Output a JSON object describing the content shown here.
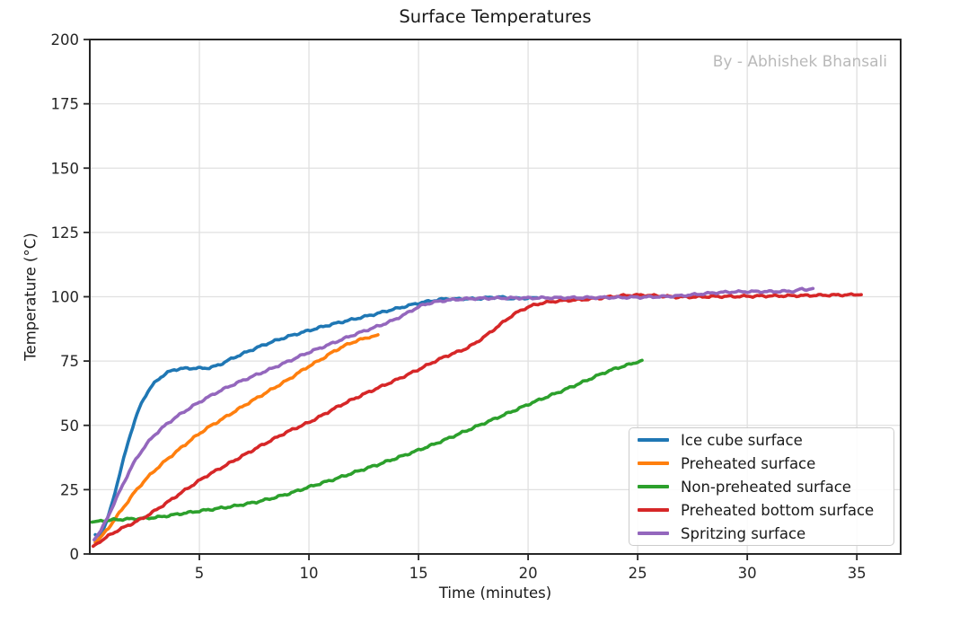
{
  "chart_data": {
    "type": "line",
    "title": "Surface Temperatures",
    "watermark": "By - Abhishek Bhansali",
    "xlabel": "Time (minutes)",
    "ylabel": "Temperature (°C)",
    "xlim": [
      0,
      37
    ],
    "ylim": [
      0,
      200
    ],
    "xticks": [
      5,
      10,
      15,
      20,
      25,
      30,
      35
    ],
    "yticks": [
      0,
      25,
      50,
      75,
      100,
      125,
      150,
      175,
      200
    ],
    "grid": true,
    "grid_color": "#e0e0e0",
    "spine_color": "#262626",
    "text_color": "#262626",
    "legend_position": "lower right",
    "series": [
      {
        "name": "Ice cube surface",
        "color": "#1f77b4",
        "points": [
          [
            0.25,
            7.5
          ],
          [
            0.4,
            6.8
          ],
          [
            0.55,
            8.5
          ],
          [
            0.7,
            11
          ],
          [
            0.9,
            16
          ],
          [
            1.1,
            22.5
          ],
          [
            1.3,
            29
          ],
          [
            1.5,
            35.5
          ],
          [
            1.7,
            42
          ],
          [
            1.9,
            48
          ],
          [
            2.1,
            53
          ],
          [
            2.3,
            57.5
          ],
          [
            2.5,
            61
          ],
          [
            2.7,
            63.8
          ],
          [
            2.9,
            66
          ],
          [
            3.2,
            68.5
          ],
          [
            3.5,
            70.3
          ],
          [
            3.8,
            71.5
          ],
          [
            4.1,
            72
          ],
          [
            4.6,
            72.2
          ],
          [
            5.1,
            72.2
          ],
          [
            5.5,
            72.4
          ],
          [
            5.9,
            73.5
          ],
          [
            6.3,
            75.2
          ],
          [
            6.7,
            76.8
          ],
          [
            7.1,
            78.3
          ],
          [
            7.6,
            80.1
          ],
          [
            8.1,
            81.8
          ],
          [
            8.6,
            83.3
          ],
          [
            9.1,
            84.7
          ],
          [
            9.6,
            85.9
          ],
          [
            10.1,
            87.1
          ],
          [
            10.6,
            88.3
          ],
          [
            11.1,
            89.4
          ],
          [
            11.6,
            90.4
          ],
          [
            12.1,
            91.4
          ],
          [
            12.6,
            92.4
          ],
          [
            13.1,
            93.4
          ],
          [
            13.6,
            94.6
          ],
          [
            14.1,
            95.6
          ],
          [
            14.6,
            96.7
          ],
          [
            15.1,
            97.7
          ],
          [
            15.6,
            98.4
          ],
          [
            16,
            98.9
          ],
          [
            16.3,
            99.3
          ],
          [
            16.7,
            99
          ],
          [
            17.1,
            99.3
          ],
          [
            17.5,
            99.1
          ],
          [
            17.9,
            99.4
          ],
          [
            18.3,
            99.7
          ],
          [
            18.7,
            99.9
          ],
          [
            19.1,
            99.4
          ],
          [
            19.5,
            99.3
          ],
          [
            19.9,
            99.5
          ],
          [
            20.4,
            99.6
          ]
        ]
      },
      {
        "name": "Preheated surface",
        "color": "#ff7f0e",
        "points": [
          [
            0.25,
            4.5
          ],
          [
            0.5,
            6.5
          ],
          [
            0.8,
            9.5
          ],
          [
            1.1,
            13
          ],
          [
            1.4,
            16.5
          ],
          [
            1.7,
            20
          ],
          [
            2,
            23.5
          ],
          [
            2.3,
            26.6
          ],
          [
            2.6,
            29.4
          ],
          [
            2.9,
            32
          ],
          [
            3.2,
            34.3
          ],
          [
            3.5,
            36.6
          ],
          [
            3.9,
            39.4
          ],
          [
            4.3,
            42.2
          ],
          [
            4.7,
            44.9
          ],
          [
            5.1,
            47.4
          ],
          [
            5.5,
            49.7
          ],
          [
            5.9,
            51.7
          ],
          [
            6.3,
            53.8
          ],
          [
            6.7,
            55.9
          ],
          [
            7.1,
            58
          ],
          [
            7.5,
            60
          ],
          [
            7.9,
            62
          ],
          [
            8.3,
            64
          ],
          [
            8.7,
            66
          ],
          [
            9.1,
            68
          ],
          [
            9.5,
            70.3
          ],
          [
            9.9,
            72.5
          ],
          [
            10.3,
            74.4
          ],
          [
            10.7,
            76.4
          ],
          [
            11.1,
            78.6
          ],
          [
            11.5,
            80.4
          ],
          [
            11.9,
            82
          ],
          [
            12.3,
            83.2
          ],
          [
            12.7,
            84.2
          ],
          [
            13,
            84.7
          ],
          [
            13.15,
            85.2
          ]
        ]
      },
      {
        "name": "Non-preheated surface",
        "color": "#2ca02c",
        "points": [
          [
            0.1,
            12.4
          ],
          [
            0.6,
            12.9
          ],
          [
            1.1,
            13.3
          ],
          [
            1.6,
            13.5
          ],
          [
            2.1,
            13.7
          ],
          [
            2.6,
            13.9
          ],
          [
            3.1,
            14.3
          ],
          [
            3.6,
            14.9
          ],
          [
            4.1,
            15.6
          ],
          [
            4.6,
            16.2
          ],
          [
            5.1,
            16.8
          ],
          [
            5.6,
            17.4
          ],
          [
            6.1,
            18
          ],
          [
            6.6,
            18.6
          ],
          [
            7.1,
            19.4
          ],
          [
            7.6,
            20.2
          ],
          [
            8.1,
            21.2
          ],
          [
            8.6,
            22.3
          ],
          [
            9.1,
            23.5
          ],
          [
            9.6,
            24.9
          ],
          [
            10.1,
            26.3
          ],
          [
            10.6,
            27.6
          ],
          [
            11.1,
            28.9
          ],
          [
            11.6,
            30.3
          ],
          [
            12.1,
            31.8
          ],
          [
            12.6,
            33.2
          ],
          [
            13.1,
            34.6
          ],
          [
            13.6,
            36.1
          ],
          [
            14.1,
            37.6
          ],
          [
            14.6,
            39.1
          ],
          [
            15.1,
            40.7
          ],
          [
            15.6,
            42.3
          ],
          [
            16.1,
            44
          ],
          [
            16.6,
            45.8
          ],
          [
            17.1,
            47.6
          ],
          [
            17.6,
            49.4
          ],
          [
            18.1,
            51.2
          ],
          [
            18.6,
            53
          ],
          [
            19.1,
            54.8
          ],
          [
            19.6,
            56.6
          ],
          [
            20.1,
            58.5
          ],
          [
            20.6,
            60.2
          ],
          [
            21.1,
            61.9
          ],
          [
            21.6,
            63.6
          ],
          [
            22.1,
            65.4
          ],
          [
            22.6,
            67.2
          ],
          [
            23.1,
            69.1
          ],
          [
            23.6,
            70.9
          ],
          [
            24.1,
            72.4
          ],
          [
            24.6,
            73.6
          ],
          [
            25,
            74.6
          ],
          [
            25.2,
            75.3
          ]
        ]
      },
      {
        "name": "Preheated bottom surface",
        "color": "#d62728",
        "points": [
          [
            0.15,
            3
          ],
          [
            0.5,
            5
          ],
          [
            0.9,
            7.3
          ],
          [
            1.3,
            9.3
          ],
          [
            1.7,
            10.9
          ],
          [
            2.1,
            12.5
          ],
          [
            2.5,
            14.3
          ],
          [
            2.9,
            16.4
          ],
          [
            3.3,
            18.7
          ],
          [
            3.7,
            21
          ],
          [
            4.1,
            23.4
          ],
          [
            4.5,
            25.7
          ],
          [
            4.9,
            28
          ],
          [
            5.3,
            30.2
          ],
          [
            5.7,
            32.1
          ],
          [
            6.1,
            34
          ],
          [
            6.5,
            35.9
          ],
          [
            6.9,
            37.8
          ],
          [
            7.3,
            39.7
          ],
          [
            7.7,
            41.6
          ],
          [
            8.1,
            43.4
          ],
          [
            8.5,
            45.2
          ],
          [
            8.9,
            47
          ],
          [
            9.3,
            48.6
          ],
          [
            9.7,
            50
          ],
          [
            10.1,
            51.6
          ],
          [
            10.5,
            53.4
          ],
          [
            10.9,
            55.3
          ],
          [
            11.3,
            57.2
          ],
          [
            11.7,
            58.9
          ],
          [
            12.1,
            60.5
          ],
          [
            12.5,
            62.1
          ],
          [
            12.9,
            63.6
          ],
          [
            13.3,
            65.1
          ],
          [
            13.7,
            66.6
          ],
          [
            14.1,
            68.1
          ],
          [
            14.5,
            69.7
          ],
          [
            14.9,
            71.3
          ],
          [
            15.3,
            73
          ],
          [
            15.7,
            74.7
          ],
          [
            16.1,
            76.3
          ],
          [
            16.5,
            77.7
          ],
          [
            16.9,
            78.9
          ],
          [
            17.2,
            80
          ],
          [
            17.5,
            81.5
          ],
          [
            17.8,
            83.2
          ],
          [
            18.1,
            85
          ],
          [
            18.4,
            87
          ],
          [
            18.7,
            89
          ],
          [
            19,
            91
          ],
          [
            19.3,
            92.9
          ],
          [
            19.6,
            94.4
          ],
          [
            19.9,
            95.6
          ],
          [
            20.2,
            96.6
          ],
          [
            20.5,
            97.3
          ],
          [
            20.9,
            97.9
          ],
          [
            21.3,
            98.3
          ],
          [
            21.8,
            98.6
          ],
          [
            22.3,
            98.8
          ],
          [
            22.8,
            99.1
          ],
          [
            23.3,
            99.5
          ],
          [
            23.8,
            100
          ],
          [
            24.3,
            100.4
          ],
          [
            24.8,
            100.6
          ],
          [
            25.3,
            100.6
          ],
          [
            25.8,
            100.4
          ],
          [
            26.3,
            100.1
          ],
          [
            26.8,
            99.9
          ],
          [
            27.3,
            99.9
          ],
          [
            28,
            100
          ],
          [
            28.7,
            100.1
          ],
          [
            29.4,
            100.1
          ],
          [
            30.1,
            100.2
          ],
          [
            30.8,
            100.3
          ],
          [
            31.5,
            100.3
          ],
          [
            32.2,
            100.4
          ],
          [
            32.9,
            100.5
          ],
          [
            33.6,
            100.6
          ],
          [
            34.3,
            100.7
          ],
          [
            35.2,
            100.8
          ]
        ]
      },
      {
        "name": "Spritzing surface",
        "color": "#9467bd",
        "points": [
          [
            0.2,
            5.5
          ],
          [
            0.5,
            9
          ],
          [
            0.8,
            14
          ],
          [
            1.1,
            19.5
          ],
          [
            1.4,
            25
          ],
          [
            1.7,
            30.3
          ],
          [
            2,
            35.3
          ],
          [
            2.3,
            39.3
          ],
          [
            2.6,
            42.8
          ],
          [
            2.9,
            45.8
          ],
          [
            3.2,
            48.2
          ],
          [
            3.5,
            50.4
          ],
          [
            3.9,
            53
          ],
          [
            4.3,
            55.3
          ],
          [
            4.8,
            58
          ],
          [
            5.3,
            60.5
          ],
          [
            5.8,
            62.8
          ],
          [
            6.3,
            64.9
          ],
          [
            6.8,
            66.8
          ],
          [
            7.3,
            68.6
          ],
          [
            7.8,
            70.3
          ],
          [
            8.3,
            72.1
          ],
          [
            8.8,
            73.9
          ],
          [
            9.3,
            75.8
          ],
          [
            9.8,
            77.7
          ],
          [
            10.3,
            79.4
          ],
          [
            10.8,
            81
          ],
          [
            11.3,
            82.7
          ],
          [
            11.8,
            84.4
          ],
          [
            12.3,
            86
          ],
          [
            12.8,
            87.5
          ],
          [
            13.3,
            89
          ],
          [
            13.8,
            90.7
          ],
          [
            14.3,
            92.8
          ],
          [
            14.8,
            95.2
          ],
          [
            15.2,
            96.8
          ],
          [
            15.6,
            97.7
          ],
          [
            16,
            98.3
          ],
          [
            16.5,
            98.8
          ],
          [
            17,
            99.1
          ],
          [
            17.5,
            99.3
          ],
          [
            18,
            99.4
          ],
          [
            19,
            99.5
          ],
          [
            20,
            99.5
          ],
          [
            21,
            99.6
          ],
          [
            22,
            99.6
          ],
          [
            23,
            99.7
          ],
          [
            24,
            99.7
          ],
          [
            25,
            99.8
          ],
          [
            26,
            100
          ],
          [
            27,
            100.4
          ],
          [
            27.8,
            101
          ],
          [
            28.6,
            101.6
          ],
          [
            29.4,
            101.9
          ],
          [
            30.2,
            102
          ],
          [
            31,
            102
          ],
          [
            31.8,
            102.1
          ],
          [
            32.2,
            102.2
          ],
          [
            32.45,
            103
          ],
          [
            32.7,
            102.7
          ],
          [
            33,
            103.2
          ]
        ]
      }
    ]
  }
}
